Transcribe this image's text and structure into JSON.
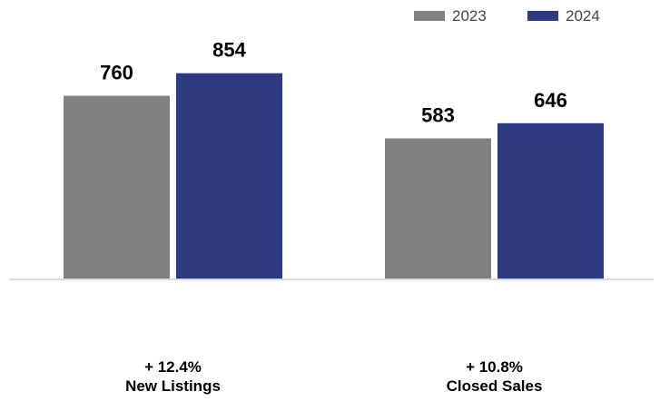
{
  "chart_data": {
    "type": "bar",
    "categories": [
      "New Listings",
      "Closed Sales"
    ],
    "category_changes": [
      "+ 12.4%",
      "+ 10.8%"
    ],
    "series": [
      {
        "name": "2023",
        "color": "#808080",
        "values": [
          760,
          583
        ]
      },
      {
        "name": "2024",
        "color": "#2e3b80",
        "values": [
          854,
          646
        ]
      }
    ],
    "ylim": [
      0,
      1000
    ],
    "grid": false,
    "legend_position": "top-right",
    "title": "",
    "xlabel": "",
    "ylabel": ""
  }
}
